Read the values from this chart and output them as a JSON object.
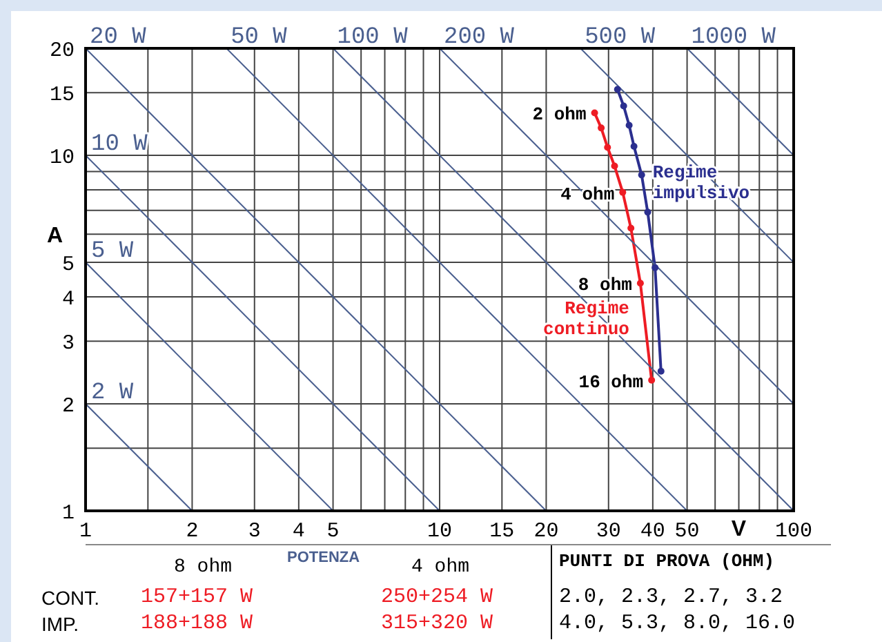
{
  "chart_data": {
    "type": "line",
    "xlabel": "V",
    "ylabel": "A",
    "log": "xy",
    "grid": true,
    "marker": "circle",
    "xlim": [
      1,
      100
    ],
    "ylim": [
      1,
      20
    ],
    "xticks": [
      1,
      {
        "value": 1.5,
        "label": null
      },
      2,
      3,
      4,
      5,
      {
        "value": 6,
        "label": null
      },
      {
        "value": 7,
        "label": null
      },
      {
        "value": 8,
        "label": null
      },
      {
        "value": 9,
        "label": null
      },
      10,
      15,
      20,
      30,
      40,
      50,
      {
        "value": 60,
        "label": null
      },
      {
        "value": 70,
        "label": null
      },
      {
        "value": 80,
        "label": null
      },
      {
        "value": 90,
        "label": null
      },
      100
    ],
    "yticks": [
      1,
      {
        "value": 1.5,
        "label": null
      },
      2,
      3,
      4,
      5,
      {
        "value": 6,
        "label": null
      },
      {
        "value": 7,
        "label": null
      },
      {
        "value": 8,
        "label": null
      },
      {
        "value": 9,
        "label": null
      },
      10,
      15,
      20
    ],
    "series": [
      {
        "name": "Regime continuo",
        "color": "#ee1c24",
        "x": [
          27.4,
          28.6,
          29.8,
          31.2,
          32.9,
          34.7,
          36.9,
          39.7
        ],
        "values": [
          13.17,
          11.94,
          10.53,
          9.33,
          7.87,
          6.24,
          4.37,
          2.33
        ]
      },
      {
        "name": "Regime impulsivo",
        "color": "#2b2f8f",
        "x": [
          31.8,
          33.1,
          34.3,
          35.4,
          37.2,
          38.7,
          40.6,
          42.2
        ],
        "values": [
          15.33,
          13.77,
          12.15,
          10.6,
          8.81,
          6.92,
          4.83,
          2.47
        ]
      },
      {
        "name": "2 W",
        "color": "#4a5f8f",
        "marker": "none",
        "x": [
          1,
          2
        ],
        "values": [
          2,
          1
        ]
      },
      {
        "name": "5 W",
        "color": "#4a5f8f",
        "marker": "none",
        "x": [
          1,
          5
        ],
        "values": [
          5,
          1
        ]
      },
      {
        "name": "10 W",
        "color": "#4a5f8f",
        "marker": "none",
        "x": [
          1,
          10
        ],
        "values": [
          10,
          1
        ]
      },
      {
        "name": "20 W",
        "color": "#4a5f8f",
        "marker": "none",
        "x": [
          1,
          20
        ],
        "values": [
          20,
          1
        ]
      },
      {
        "name": "50 W",
        "color": "#4a5f8f",
        "marker": "none",
        "x": [
          2.5,
          50
        ],
        "values": [
          20,
          1
        ]
      },
      {
        "name": "100 W",
        "color": "#4a5f8f",
        "marker": "none",
        "x": [
          5,
          100
        ],
        "values": [
          20,
          1
        ]
      },
      {
        "name": "200 W",
        "color": "#4a5f8f",
        "marker": "none",
        "x": [
          10,
          100
        ],
        "values": [
          20,
          2
        ]
      },
      {
        "name": "500 W",
        "color": "#4a5f8f",
        "marker": "none",
        "x": [
          25,
          100
        ],
        "values": [
          20,
          5
        ]
      },
      {
        "name": "1000 W",
        "color": "#4a5f8f",
        "marker": "none",
        "x": [
          50,
          100
        ],
        "values": [
          20,
          10
        ]
      }
    ],
    "annotations": [
      "POTENZA",
      "8 ohm",
      "4 ohm",
      "PUNTI DI PROVA (OHM)",
      "CONT.",
      "157+157 W",
      "250+254 W",
      "2.0, 2.3, 2.7, 3.2",
      "IMP.",
      "188+188 W",
      "315+320 W",
      "4.0, 5.3, 8.0, 16.0",
      {
        "text": "2 ohm",
        "x": 27.4,
        "y": 13.17
      },
      {
        "text": "4 ohm",
        "x": 32.9,
        "y": 7.87
      },
      {
        "text": "8 ohm",
        "x": 36.9,
        "y": 4.37
      },
      {
        "text": "16 ohm",
        "x": 39.7,
        "y": 2.33
      }
    ]
  }
}
